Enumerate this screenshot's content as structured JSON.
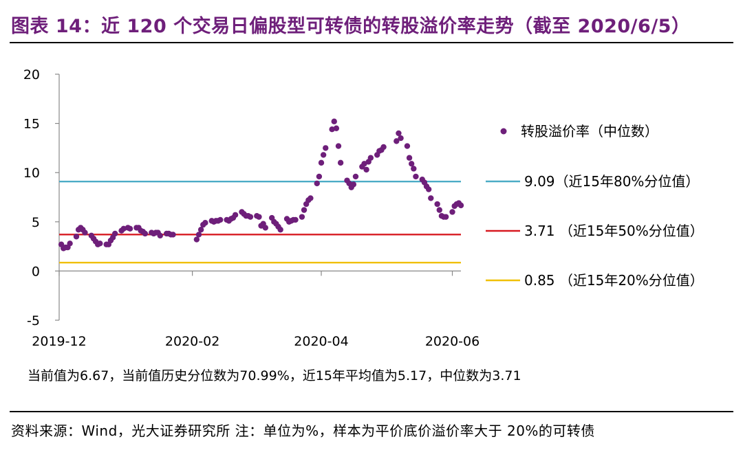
{
  "title": "图表 14：近 120 个交易日偏股型可转债的转股溢价率走势（截至 2020/6/5）",
  "note": "当前值为6.67，当前值历史分位数为70.99%，近15年平均值为5.17，中位数为3.71",
  "source": "资料来源：Wind，光大证券研究所    注：单位为%，样本为平价底价溢价率大于 20%的可转债",
  "colors": {
    "title": "#6e1f7a",
    "points": "#6e1f7a",
    "p80": "#4bacc6",
    "p50": "#d71920",
    "p20": "#f0c000"
  },
  "chart_data": {
    "type": "scatter",
    "x_tick_labels": [
      "2019-12",
      "2020-02",
      "2020-04",
      "2020-06"
    ],
    "x_ticks": [
      "2019-12-01",
      "2020-02-01",
      "2020-04-01",
      "2020-06-01"
    ],
    "xlim": [
      "2019-12-01",
      "2020-06-05"
    ],
    "ylim": [
      -5,
      20
    ],
    "y_ticks": [
      -5,
      0,
      5,
      10,
      15,
      20
    ],
    "grid": false,
    "legend_position": "right",
    "series": [
      {
        "name": "转股溢价率（中位数）",
        "type": "scatter",
        "color": "#6e1f7a",
        "points": [
          [
            "2019-12-02",
            2.7
          ],
          [
            "2019-12-03",
            2.3
          ],
          [
            "2019-12-04",
            2.4
          ],
          [
            "2019-12-05",
            2.4
          ],
          [
            "2019-12-06",
            2.8
          ],
          [
            "2019-12-09",
            3.5
          ],
          [
            "2019-12-10",
            4.2
          ],
          [
            "2019-12-11",
            4.4
          ],
          [
            "2019-12-12",
            4.2
          ],
          [
            "2019-12-13",
            3.9
          ],
          [
            "2019-12-16",
            3.6
          ],
          [
            "2019-12-17",
            3.3
          ],
          [
            "2019-12-18",
            3.0
          ],
          [
            "2019-12-19",
            2.7
          ],
          [
            "2019-12-20",
            2.8
          ],
          [
            "2019-12-23",
            2.7
          ],
          [
            "2019-12-24",
            2.7
          ],
          [
            "2019-12-25",
            3.1
          ],
          [
            "2019-12-26",
            3.4
          ],
          [
            "2019-12-27",
            3.8
          ],
          [
            "2019-12-30",
            4.1
          ],
          [
            "2019-12-31",
            4.3
          ],
          [
            "2020-01-02",
            4.4
          ],
          [
            "2020-01-03",
            4.3
          ],
          [
            "2020-01-06",
            4.4
          ],
          [
            "2020-01-07",
            4.4
          ],
          [
            "2020-01-08",
            4.1
          ],
          [
            "2020-01-09",
            4.0
          ],
          [
            "2020-01-10",
            3.8
          ],
          [
            "2020-01-13",
            3.9
          ],
          [
            "2020-01-14",
            3.8
          ],
          [
            "2020-01-15",
            3.9
          ],
          [
            "2020-01-16",
            3.9
          ],
          [
            "2020-01-17",
            3.6
          ],
          [
            "2020-01-20",
            3.8
          ],
          [
            "2020-01-21",
            3.8
          ],
          [
            "2020-01-22",
            3.7
          ],
          [
            "2020-01-23",
            3.7
          ],
          [
            "2020-02-03",
            3.2
          ],
          [
            "2020-02-04",
            3.7
          ],
          [
            "2020-02-05",
            4.2
          ],
          [
            "2020-02-06",
            4.7
          ],
          [
            "2020-02-07",
            4.9
          ],
          [
            "2020-02-10",
            5.1
          ],
          [
            "2020-02-11",
            5.0
          ],
          [
            "2020-02-12",
            5.1
          ],
          [
            "2020-02-13",
            5.1
          ],
          [
            "2020-02-14",
            5.2
          ],
          [
            "2020-02-17",
            5.2
          ],
          [
            "2020-02-18",
            5.1
          ],
          [
            "2020-02-19",
            5.3
          ],
          [
            "2020-02-20",
            5.4
          ],
          [
            "2020-02-21",
            5.7
          ],
          [
            "2020-02-24",
            6.0
          ],
          [
            "2020-02-25",
            5.8
          ],
          [
            "2020-02-26",
            5.6
          ],
          [
            "2020-02-27",
            5.6
          ],
          [
            "2020-02-28",
            5.5
          ],
          [
            "2020-03-02",
            5.6
          ],
          [
            "2020-03-03",
            5.5
          ],
          [
            "2020-03-04",
            4.6
          ],
          [
            "2020-03-05",
            4.8
          ],
          [
            "2020-03-06",
            4.4
          ],
          [
            "2020-03-09",
            5.4
          ],
          [
            "2020-03-10",
            5.0
          ],
          [
            "2020-03-11",
            4.8
          ],
          [
            "2020-03-12",
            4.5
          ],
          [
            "2020-03-13",
            4.2
          ],
          [
            "2020-03-16",
            5.3
          ],
          [
            "2020-03-17",
            5.0
          ],
          [
            "2020-03-18",
            5.1
          ],
          [
            "2020-03-19",
            5.2
          ],
          [
            "2020-03-20",
            5.2
          ],
          [
            "2020-03-23",
            5.5
          ],
          [
            "2020-03-24",
            6.2
          ],
          [
            "2020-03-25",
            6.8
          ],
          [
            "2020-03-26",
            7.2
          ],
          [
            "2020-03-27",
            7.4
          ],
          [
            "2020-03-30",
            8.9
          ],
          [
            "2020-03-31",
            9.6
          ],
          [
            "2020-04-01",
            11.0
          ],
          [
            "2020-04-02",
            11.8
          ],
          [
            "2020-04-03",
            12.5
          ],
          [
            "2020-04-06",
            14.4
          ],
          [
            "2020-04-07",
            15.2
          ],
          [
            "2020-04-08",
            14.5
          ],
          [
            "2020-04-09",
            12.7
          ],
          [
            "2020-04-10",
            11.0
          ],
          [
            "2020-04-13",
            9.2
          ],
          [
            "2020-04-14",
            8.9
          ],
          [
            "2020-04-15",
            8.5
          ],
          [
            "2020-04-16",
            8.8
          ],
          [
            "2020-04-17",
            9.6
          ],
          [
            "2020-04-20",
            10.6
          ],
          [
            "2020-04-21",
            10.9
          ],
          [
            "2020-04-22",
            10.3
          ],
          [
            "2020-04-23",
            11.1
          ],
          [
            "2020-04-24",
            11.5
          ],
          [
            "2020-04-27",
            11.8
          ],
          [
            "2020-04-28",
            12.2
          ],
          [
            "2020-04-29",
            12.3
          ],
          [
            "2020-04-30",
            12.6
          ],
          [
            "2020-05-06",
            13.2
          ],
          [
            "2020-05-07",
            14.0
          ],
          [
            "2020-05-08",
            13.5
          ],
          [
            "2020-05-11",
            12.7
          ],
          [
            "2020-05-12",
            11.5
          ],
          [
            "2020-05-13",
            10.9
          ],
          [
            "2020-05-14",
            10.4
          ],
          [
            "2020-05-15",
            9.6
          ],
          [
            "2020-05-18",
            9.3
          ],
          [
            "2020-05-19",
            9.0
          ],
          [
            "2020-05-20",
            8.6
          ],
          [
            "2020-05-21",
            8.3
          ],
          [
            "2020-05-22",
            7.4
          ],
          [
            "2020-05-25",
            6.8
          ],
          [
            "2020-05-26",
            6.2
          ],
          [
            "2020-05-27",
            5.6
          ],
          [
            "2020-05-28",
            5.5
          ],
          [
            "2020-05-29",
            5.5
          ],
          [
            "2020-06-01",
            6.0
          ],
          [
            "2020-06-02",
            6.6
          ],
          [
            "2020-06-03",
            6.8
          ],
          [
            "2020-06-04",
            6.9
          ],
          [
            "2020-06-05",
            6.67
          ]
        ]
      },
      {
        "name": "9.09（近15年80%分位值）",
        "type": "hline",
        "value": 9.09,
        "color": "#4bacc6"
      },
      {
        "name": "3.71 （近15年50%分位值）",
        "type": "hline",
        "value": 3.71,
        "color": "#d71920"
      },
      {
        "name": "0.85 （近15年20%分位值）",
        "type": "hline",
        "value": 0.85,
        "color": "#f0c000"
      }
    ]
  }
}
